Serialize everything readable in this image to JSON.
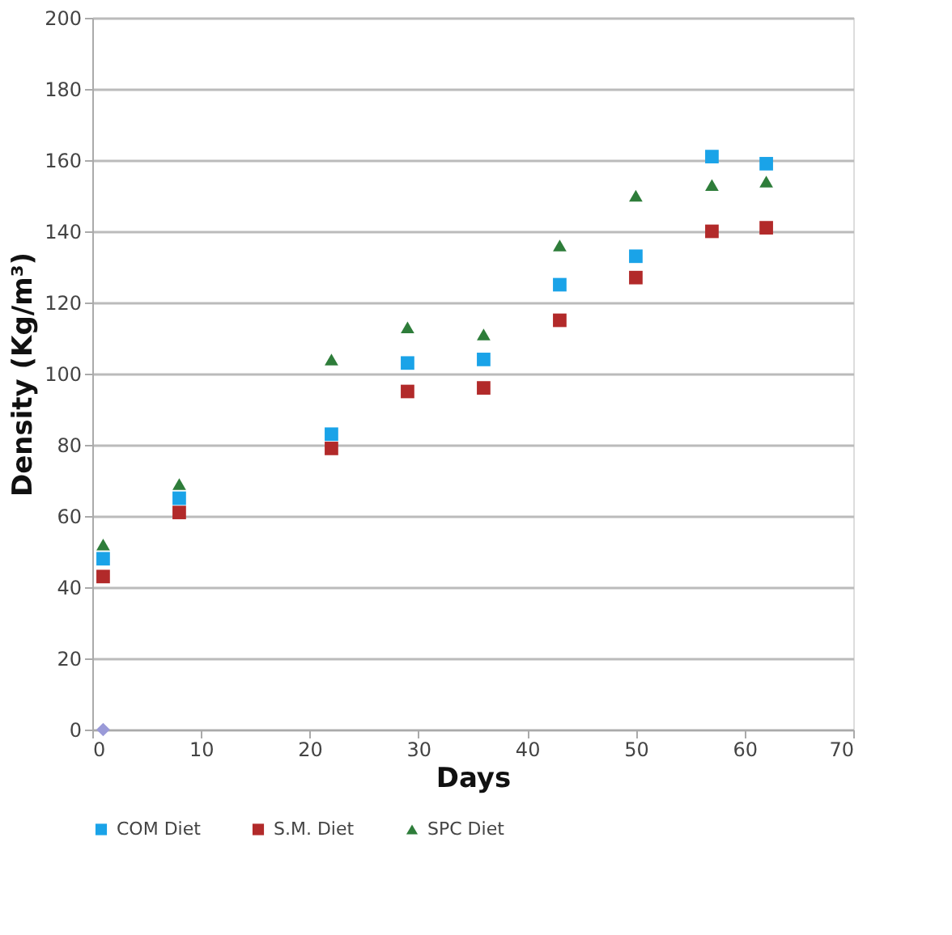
{
  "chart_data": {
    "type": "scatter",
    "xlabel": "Days",
    "ylabel": "Density (Kg/m³)",
    "x": [
      1,
      8,
      22,
      29,
      36,
      43,
      50,
      57,
      62
    ],
    "series": [
      {
        "name": "COM Diet",
        "color": "#1aa3e8",
        "marker": "square",
        "values": [
          48,
          65,
          83,
          103,
          104,
          125,
          133,
          161,
          159
        ]
      },
      {
        "name": "S.M. Diet",
        "color": "#b22a2a",
        "marker": "square",
        "values": [
          43,
          61,
          79,
          95,
          96,
          115,
          127,
          140,
          141
        ]
      },
      {
        "name": "SPC Diet",
        "color": "#2e7d3a",
        "marker": "triangle",
        "values": [
          52,
          69,
          104,
          113,
          111,
          136,
          150,
          153,
          154
        ]
      },
      {
        "color": "#9a9ad8",
        "marker": "diamond",
        "x": [
          1
        ],
        "values": [
          0
        ]
      }
    ],
    "xlim": [
      0,
      70
    ],
    "xticks": [
      0,
      10,
      20,
      30,
      40,
      50,
      60,
      70
    ],
    "ylim": [
      0,
      200
    ],
    "yticks": [
      0,
      20,
      40,
      60,
      80,
      100,
      120,
      140,
      160,
      180,
      200
    ],
    "grid": "y",
    "legend": "bottom"
  }
}
